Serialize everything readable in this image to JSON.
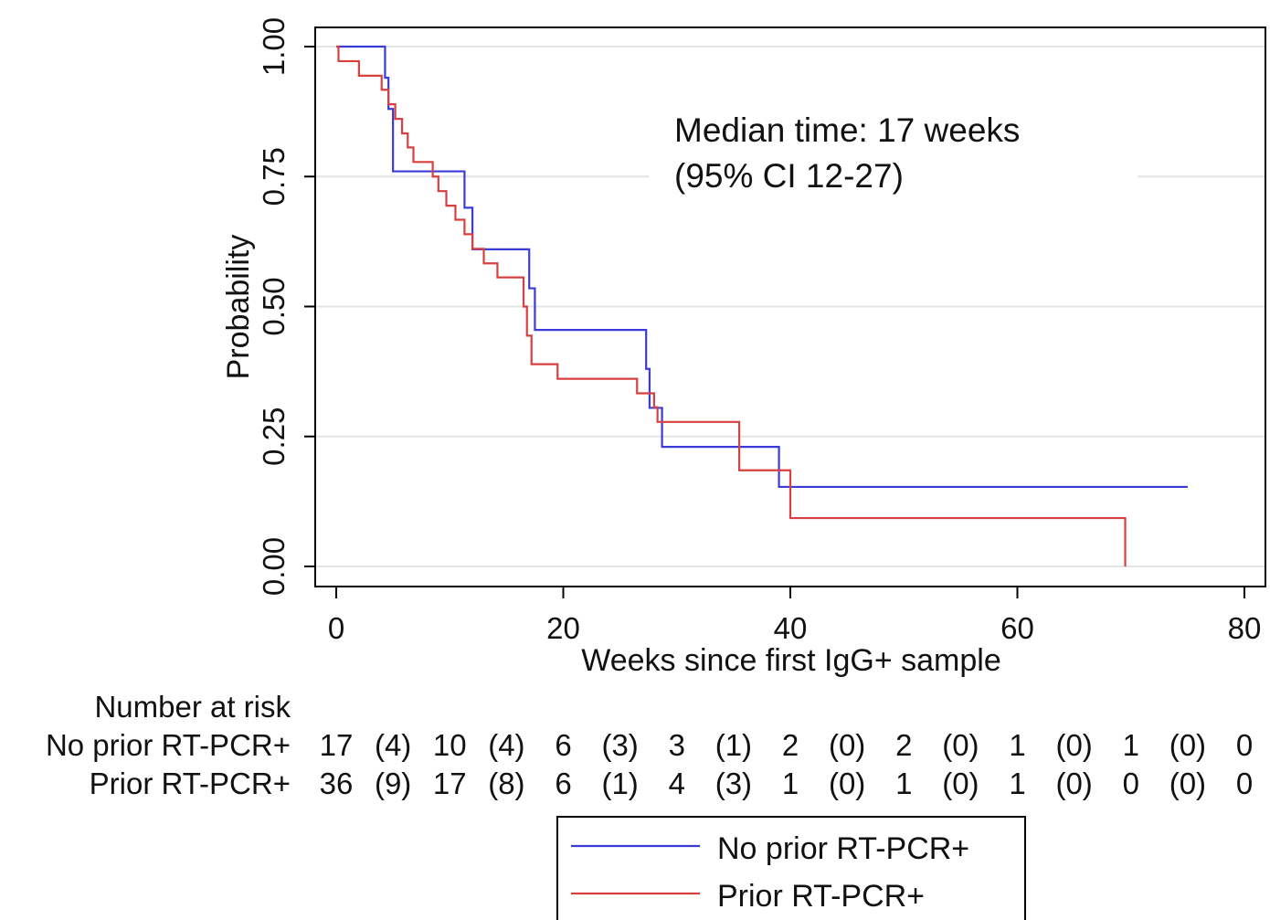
{
  "chart_data": {
    "type": "line",
    "step": true,
    "xlabel": "Weeks since first IgG+ sample",
    "ylabel": "Probability",
    "xlim": [
      0,
      80
    ],
    "ylim": [
      0,
      1
    ],
    "x_ticks": [
      "0",
      "20",
      "40",
      "60",
      "80"
    ],
    "y_ticks": [
      "0.00",
      "0.25",
      "0.50",
      "0.75",
      "1.00"
    ],
    "grid": "horizontal",
    "annotation": [
      "Median time: 17 weeks",
      "(95% CI 12-27)"
    ],
    "legend_position": "bottom",
    "series": [
      {
        "name": "No prior RT-PCR+",
        "color": "#3b3bd8",
        "x": [
          0,
          4,
          4.3,
          4.6,
          5,
          11,
          11.3,
          12,
          16,
          17,
          17.5,
          27,
          27.3,
          27.6,
          28,
          28.7,
          38.5,
          39,
          75
        ],
        "y": [
          1.0,
          1.0,
          0.94,
          0.88,
          0.76,
          0.76,
          0.69,
          0.61,
          0.61,
          0.535,
          0.455,
          0.455,
          0.38,
          0.305,
          0.305,
          0.23,
          0.23,
          0.153,
          0.153
        ]
      },
      {
        "name": "Prior RT-PCR+",
        "color": "#d84040",
        "x": [
          0,
          0.2,
          2,
          4,
          4.6,
          5.2,
          5.8,
          6.3,
          6.8,
          8.5,
          9,
          9.7,
          10.5,
          11.3,
          12,
          13,
          14.2,
          16.5,
          16.8,
          17.2,
          19.5,
          26.5,
          28,
          28.3,
          35.5,
          40,
          69.5,
          69.5
        ],
        "y": [
          1.0,
          0.972,
          0.944,
          0.917,
          0.889,
          0.861,
          0.833,
          0.806,
          0.778,
          0.75,
          0.722,
          0.694,
          0.667,
          0.639,
          0.611,
          0.583,
          0.556,
          0.5,
          0.444,
          0.389,
          0.361,
          0.333,
          0.306,
          0.278,
          0.185,
          0.093,
          0.093,
          0.0
        ]
      }
    ],
    "risk_table": {
      "title": "Number at risk",
      "rows": [
        {
          "label": "No prior RT-PCR+",
          "at_risk": [
            "17",
            "10",
            "6",
            "3",
            "2",
            "2",
            "1",
            "1",
            "0"
          ],
          "events": [
            "(4)",
            "(4)",
            "(3)",
            "(1)",
            "(0)",
            "(0)",
            "(0)",
            "(0)"
          ]
        },
        {
          "label": "Prior RT-PCR+",
          "at_risk": [
            "36",
            "17",
            "6",
            "4",
            "1",
            "1",
            "1",
            "0",
            "0"
          ],
          "events": [
            "(9)",
            "(8)",
            "(1)",
            "(3)",
            "(0)",
            "(0)",
            "(0)",
            "(0)"
          ]
        }
      ]
    }
  }
}
